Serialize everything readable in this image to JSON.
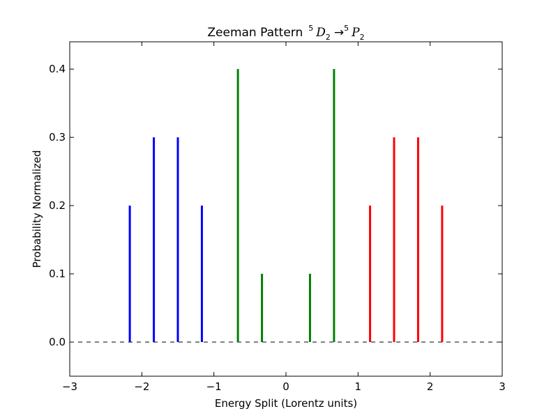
{
  "chart_data": {
    "type": "bar",
    "title": "Zeeman Pattern",
    "title_math": {
      "base_a": "D",
      "sup_a": "5",
      "sub_a": "2",
      "arrow": "→",
      "base_b": "P",
      "sup_b": "5",
      "sub_b": "2"
    },
    "xlabel": "Energy Split (Lorentz units)",
    "ylabel": "Probability Normalized",
    "xlim": [
      -3,
      3
    ],
    "ylim": [
      -0.05,
      0.44
    ],
    "xticks": [
      -3,
      -2,
      -1,
      0,
      1,
      2,
      3
    ],
    "xtick_labels": [
      "−3",
      "−2",
      "−1",
      "0",
      "1",
      "2",
      "3"
    ],
    "yticks": [
      0.0,
      0.1,
      0.2,
      0.3,
      0.4
    ],
    "ytick_labels": [
      "0.0",
      "0.1",
      "0.2",
      "0.3",
      "0.4"
    ],
    "grid": false,
    "baseline": {
      "y": 0.0,
      "style": "dashed",
      "color": "#000000"
    },
    "series": [
      {
        "color": "#0000ff",
        "x": [
          -2.1667,
          -1.8333,
          -1.5,
          -1.1667
        ],
        "values": [
          0.2,
          0.3,
          0.3,
          0.2
        ]
      },
      {
        "color": "#008000",
        "x": [
          -0.6667,
          -0.3333,
          0.3333,
          0.6667
        ],
        "values": [
          0.4,
          0.1,
          0.1,
          0.4
        ]
      },
      {
        "color": "#ff0000",
        "x": [
          1.1667,
          1.5,
          1.8333,
          2.1667
        ],
        "values": [
          0.2,
          0.3,
          0.3,
          0.2
        ]
      }
    ]
  }
}
